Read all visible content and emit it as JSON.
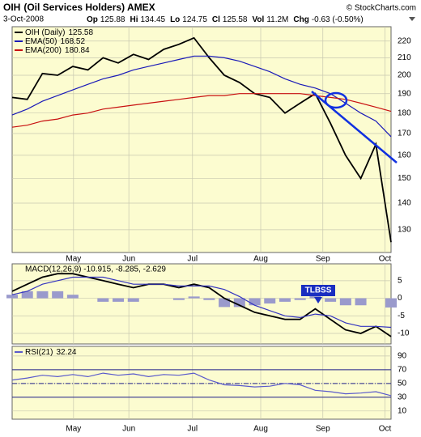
{
  "header": {
    "symbol": "OIH",
    "name": "(Oil Services Holders) AMEX",
    "copyright": "© StockCharts.com",
    "date": "3-Oct-2008",
    "quote": [
      {
        "label": "Op",
        "value": 125.88
      },
      {
        "label": "Hi",
        "value": 134.45
      },
      {
        "label": "Lo",
        "value": 124.75
      },
      {
        "label": "Cl",
        "value": 125.58
      },
      {
        "label": "Vol",
        "value": "11.2M"
      },
      {
        "label": "Chg",
        "value": "-0.63 (-0.50%)"
      }
    ]
  },
  "chart_data": [
    {
      "type": "line",
      "log": true,
      "grid": true,
      "xlim": [
        0,
        25
      ],
      "ylim": [
        122,
        229
      ],
      "yticks": [
        130,
        140,
        150,
        160,
        170,
        180,
        190,
        200,
        210,
        220
      ],
      "xticks": [
        {
          "value": 4.05,
          "label": "May"
        },
        {
          "value": 7.7,
          "label": "Jun"
        },
        {
          "value": 11.9,
          "label": "Jul"
        },
        {
          "value": 16.4,
          "label": "Aug"
        },
        {
          "value": 20.5,
          "label": "Sep"
        },
        {
          "value": 24.6,
          "label": "Oct"
        }
      ],
      "series": [
        {
          "name": "OIH (Daily)",
          "color": "#000000",
          "values": [
            188,
            187,
            201,
            200,
            205,
            203,
            210,
            207,
            212,
            209,
            215,
            218,
            222,
            210,
            200,
            196,
            190,
            188,
            180,
            185,
            190,
            175,
            160,
            150,
            165,
            125.58
          ]
        },
        {
          "name": "EMA(50)",
          "color": "#1a1ab8",
          "values": [
            179,
            182,
            186,
            189,
            192,
            195,
            198,
            200,
            203,
            205,
            207,
            209,
            211,
            211,
            210,
            208,
            205,
            202,
            198,
            195,
            193,
            190,
            185,
            180,
            176,
            168.52
          ]
        },
        {
          "name": "EMA(200)",
          "color": "#c81010",
          "values": [
            173,
            174,
            176,
            177,
            179,
            180,
            182,
            183,
            184,
            185,
            186,
            187,
            188,
            189,
            189,
            190,
            190,
            190,
            190,
            190,
            189,
            188,
            187,
            185,
            183,
            180.84
          ]
        }
      ]
    },
    {
      "type": "line",
      "log": false,
      "grid": true,
      "xlim": [
        0,
        25
      ],
      "ylim": [
        -13,
        9.8
      ],
      "yticks": [
        5,
        0,
        -5,
        -10
      ],
      "legend_text": "MACD(12,26,9) -10.915, -8.285, -2.629",
      "annotation": "TLBSS",
      "series": [
        {
          "name": "Histogram",
          "type": "bar",
          "color": "#9a9acc",
          "values": [
            1,
            2,
            2,
            2,
            1,
            0,
            -1,
            -1,
            -1,
            0,
            0,
            -0.5,
            0.5,
            -0.5,
            -2.5,
            -2.5,
            -2,
            -1.5,
            -1,
            -0.5,
            1.5,
            -1,
            -2,
            -2,
            0,
            -2.629
          ]
        },
        {
          "name": "MACD",
          "color": "#000000",
          "values": [
            2,
            4,
            6,
            7,
            7,
            6,
            5,
            4,
            3,
            4,
            4,
            3,
            4,
            3,
            0,
            -2,
            -4,
            -5,
            -6,
            -6,
            -3,
            -6,
            -9,
            -10,
            -8,
            -10.915
          ]
        },
        {
          "name": "Signal",
          "color": "#3434c0",
          "values": [
            1,
            2,
            4,
            5,
            6,
            6,
            6,
            5,
            4,
            4,
            4,
            3.5,
            3.5,
            3.5,
            2.5,
            0.5,
            -2,
            -3.5,
            -5,
            -5.5,
            -4.5,
            -5,
            -7,
            -8,
            -8,
            -8.285
          ]
        }
      ]
    },
    {
      "type": "line",
      "log": false,
      "grid": true,
      "xlim": [
        0,
        25
      ],
      "ylim": [
        -2,
        104
      ],
      "yticks": [
        90,
        70,
        50,
        30,
        10
      ],
      "levels": [
        70,
        50,
        30
      ],
      "xticks": [
        {
          "value": 4.05,
          "label": "May"
        },
        {
          "value": 7.7,
          "label": "Jun"
        },
        {
          "value": 11.9,
          "label": "Jul"
        },
        {
          "value": 16.4,
          "label": "Aug"
        },
        {
          "value": 20.5,
          "label": "Sep"
        },
        {
          "value": 24.6,
          "label": "Oct"
        }
      ],
      "series": [
        {
          "name": "RSI(21)",
          "color": "#5a5acc",
          "values": [
            55,
            58,
            62,
            60,
            63,
            60,
            65,
            62,
            64,
            60,
            63,
            62,
            65,
            55,
            48,
            47,
            45,
            46,
            50,
            48,
            40,
            38,
            35,
            36,
            38,
            32.24
          ]
        }
      ]
    }
  ]
}
